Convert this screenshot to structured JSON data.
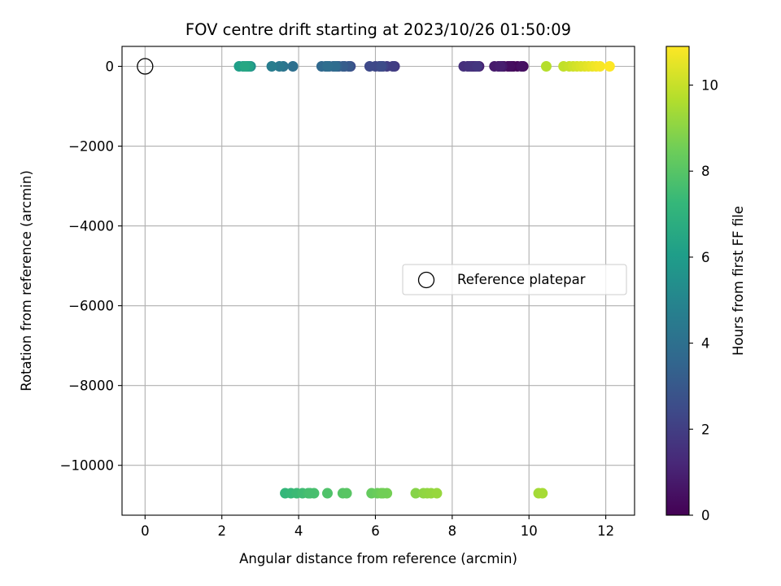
{
  "chart_data": {
    "type": "scatter",
    "title": "FOV centre drift starting at 2023/10/26 01:50:09",
    "xlabel": "Angular distance from reference (arcmin)",
    "ylabel": "Rotation from reference (arcmin)",
    "xlim": [
      -0.6,
      12.75
    ],
    "ylim": [
      -11250,
      500
    ],
    "xticks": [
      0,
      2,
      4,
      6,
      8,
      10,
      12
    ],
    "yticks": [
      0,
      -2000,
      -4000,
      -6000,
      -8000,
      -10000
    ],
    "xtick_labels": [
      "0",
      "2",
      "4",
      "6",
      "8",
      "10",
      "12"
    ],
    "ytick_labels": [
      "0",
      "−2000",
      "−4000",
      "−6000",
      "−8000",
      "−10000"
    ],
    "grid": true,
    "legend": {
      "label": "Reference platepar",
      "placement": "center-right"
    },
    "colorbar": {
      "label": "Hours from first FF file",
      "colormap": "viridis",
      "range": [
        0,
        10.9
      ],
      "ticks": [
        0,
        2,
        4,
        6,
        8,
        10
      ],
      "tick_labels": [
        "0",
        "2",
        "4",
        "6",
        "8",
        "10"
      ]
    },
    "reference_point": {
      "x": 0,
      "y": 0
    },
    "series": [
      {
        "points": [
          {
            "x": 9.45,
            "y": 0,
            "c": 0.1
          },
          {
            "x": 9.6,
            "y": 0,
            "c": 0.15
          },
          {
            "x": 9.7,
            "y": 0,
            "c": 0.2
          },
          {
            "x": 9.55,
            "y": 0,
            "c": 0.25
          },
          {
            "x": 9.85,
            "y": 0,
            "c": 0.3
          },
          {
            "x": 9.35,
            "y": 0,
            "c": 0.35
          },
          {
            "x": 9.5,
            "y": 0,
            "c": 0.4
          },
          {
            "x": 9.8,
            "y": 0,
            "c": 0.45
          },
          {
            "x": 9.2,
            "y": 0,
            "c": 0.6
          },
          {
            "x": 9.3,
            "y": 0,
            "c": 0.7
          },
          {
            "x": 9.1,
            "y": 0,
            "c": 0.8
          },
          {
            "x": 9.25,
            "y": 0,
            "c": 0.9
          },
          {
            "x": 8.7,
            "y": 0,
            "c": 1.0
          },
          {
            "x": 8.55,
            "y": 0,
            "c": 1.1
          },
          {
            "x": 8.6,
            "y": 0,
            "c": 1.2
          },
          {
            "x": 8.4,
            "y": 0,
            "c": 1.3
          },
          {
            "x": 8.5,
            "y": 0,
            "c": 1.4
          },
          {
            "x": 8.3,
            "y": 0,
            "c": 1.5
          },
          {
            "x": 8.45,
            "y": 0,
            "c": 1.6
          },
          {
            "x": 8.65,
            "y": 0,
            "c": 1.7
          },
          {
            "x": 6.5,
            "y": 0,
            "c": 1.8
          },
          {
            "x": 6.3,
            "y": 0,
            "c": 1.9
          },
          {
            "x": 6.45,
            "y": 0,
            "c": 2.0
          },
          {
            "x": 6.1,
            "y": 0,
            "c": 2.1
          },
          {
            "x": 6.2,
            "y": 0,
            "c": 2.2
          },
          {
            "x": 6.0,
            "y": 0,
            "c": 2.3
          },
          {
            "x": 5.85,
            "y": 0,
            "c": 2.4
          },
          {
            "x": 6.15,
            "y": 0,
            "c": 2.5
          },
          {
            "x": 5.35,
            "y": 0,
            "c": 2.6
          },
          {
            "x": 5.2,
            "y": 0,
            "c": 2.8
          },
          {
            "x": 5.3,
            "y": 0,
            "c": 3.0
          },
          {
            "x": 5.05,
            "y": 0,
            "c": 3.1
          },
          {
            "x": 5.15,
            "y": 0,
            "c": 3.2
          },
          {
            "x": 4.9,
            "y": 0,
            "c": 3.3
          },
          {
            "x": 5.0,
            "y": 0,
            "c": 3.4
          },
          {
            "x": 4.8,
            "y": 0,
            "c": 3.5
          },
          {
            "x": 4.7,
            "y": 0,
            "c": 3.6
          },
          {
            "x": 4.6,
            "y": 0,
            "c": 3.7
          },
          {
            "x": 4.95,
            "y": 0,
            "c": 3.8
          },
          {
            "x": 4.75,
            "y": 0,
            "c": 3.9
          },
          {
            "x": 3.85,
            "y": 0,
            "c": 4.0
          },
          {
            "x": 3.6,
            "y": 0,
            "c": 4.2
          },
          {
            "x": 3.5,
            "y": 0,
            "c": 4.4
          },
          {
            "x": 3.3,
            "y": 0,
            "c": 4.6
          },
          {
            "x": 2.75,
            "y": 0,
            "c": 5.5
          },
          {
            "x": 2.65,
            "y": 0,
            "c": 5.7
          },
          {
            "x": 2.55,
            "y": 0,
            "c": 5.9
          },
          {
            "x": 2.45,
            "y": 0,
            "c": 6.1
          },
          {
            "x": 2.7,
            "y": 0,
            "c": 6.3
          },
          {
            "x": 2.6,
            "y": 0,
            "c": 6.5
          },
          {
            "x": 3.65,
            "y": -10700,
            "c": 7.2
          },
          {
            "x": 3.8,
            "y": -10700,
            "c": 7.3
          },
          {
            "x": 3.95,
            "y": -10700,
            "c": 7.4
          },
          {
            "x": 4.1,
            "y": -10700,
            "c": 7.5
          },
          {
            "x": 4.25,
            "y": -10700,
            "c": 7.6
          },
          {
            "x": 4.4,
            "y": -10700,
            "c": 7.7
          },
          {
            "x": 4.3,
            "y": -10700,
            "c": 7.65
          },
          {
            "x": 4.75,
            "y": -10700,
            "c": 7.85
          },
          {
            "x": 5.15,
            "y": -10700,
            "c": 8.0
          },
          {
            "x": 5.25,
            "y": -10700,
            "c": 8.05
          },
          {
            "x": 5.9,
            "y": -10700,
            "c": 8.3
          },
          {
            "x": 6.05,
            "y": -10700,
            "c": 8.4
          },
          {
            "x": 6.15,
            "y": -10700,
            "c": 8.5
          },
          {
            "x": 6.3,
            "y": -10700,
            "c": 8.6
          },
          {
            "x": 6.2,
            "y": -10700,
            "c": 8.55
          },
          {
            "x": 7.05,
            "y": -10700,
            "c": 8.9
          },
          {
            "x": 7.25,
            "y": -10700,
            "c": 9.05
          },
          {
            "x": 7.35,
            "y": -10700,
            "c": 9.1
          },
          {
            "x": 7.45,
            "y": -10700,
            "c": 9.15
          },
          {
            "x": 7.6,
            "y": -10700,
            "c": 9.2
          },
          {
            "x": 10.25,
            "y": -10700,
            "c": 9.4
          },
          {
            "x": 10.35,
            "y": -10700,
            "c": 9.45
          },
          {
            "x": 10.45,
            "y": 0,
            "c": 9.7
          },
          {
            "x": 10.9,
            "y": 0,
            "c": 9.9
          },
          {
            "x": 11.05,
            "y": 0,
            "c": 10.0
          },
          {
            "x": 11.15,
            "y": 0,
            "c": 10.1
          },
          {
            "x": 11.25,
            "y": 0,
            "c": 10.2
          },
          {
            "x": 11.35,
            "y": 0,
            "c": 10.3
          },
          {
            "x": 11.45,
            "y": 0,
            "c": 10.4
          },
          {
            "x": 11.55,
            "y": 0,
            "c": 10.5
          },
          {
            "x": 11.65,
            "y": 0,
            "c": 10.6
          },
          {
            "x": 11.75,
            "y": 0,
            "c": 10.7
          },
          {
            "x": 11.85,
            "y": 0,
            "c": 10.8
          },
          {
            "x": 12.1,
            "y": 0,
            "c": 10.9
          }
        ]
      }
    ]
  }
}
